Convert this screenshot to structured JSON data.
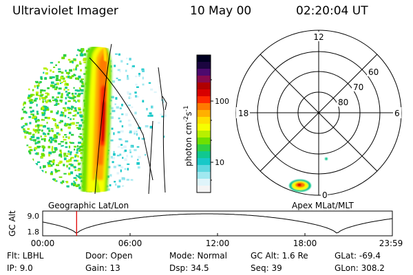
{
  "header": {
    "title": "Ultraviolet Imager",
    "date": "10 May 00",
    "time": "02:20:04 UT"
  },
  "colorbar": {
    "label": "photon cm",
    "label_exp1": "-2",
    "label_mid": "s",
    "label_exp2": "-1",
    "ticks": [
      "100",
      "10"
    ],
    "colors": [
      "#000020",
      "#1b0540",
      "#4d0a6e",
      "#870a4e",
      "#b00000",
      "#d80000",
      "#ff2a00",
      "#ff7a00",
      "#ffb000",
      "#ffe000",
      "#f6ff00",
      "#b8f000",
      "#6ee000",
      "#2fd040",
      "#10c890",
      "#18c8c8",
      "#60d8e0",
      "#a0e8f0",
      "#dff4fa",
      "#f4f4f4"
    ]
  },
  "labels": {
    "geographic": "Geographic Lat/Lon",
    "apex": "Apex  MLat/MLT"
  },
  "polar": {
    "mlt": [
      "12",
      "18",
      "6",
      "0"
    ],
    "lat": [
      "60",
      "70",
      "80"
    ]
  },
  "timeline": {
    "ylabel": "GC Alt",
    "ymax": "9.0",
    "ymin": "1.8",
    "ticks": [
      "00:00",
      "06:00",
      "12:00",
      "18:00",
      "23:59"
    ],
    "marker_fraction": 0.097
  },
  "status": {
    "flt": "Flt: LBHL",
    "ip": "IP:  9.0",
    "door": "Door: Open",
    "gain": "Gain: 13",
    "mode": "Mode: Normal",
    "dsp": "Dsp:    34.5",
    "gcalt": "GC Alt: 1.6 Re",
    "seq": "Seq: 39",
    "glat": "GLat: -69.4",
    "glon": "GLon: 308.2"
  }
}
